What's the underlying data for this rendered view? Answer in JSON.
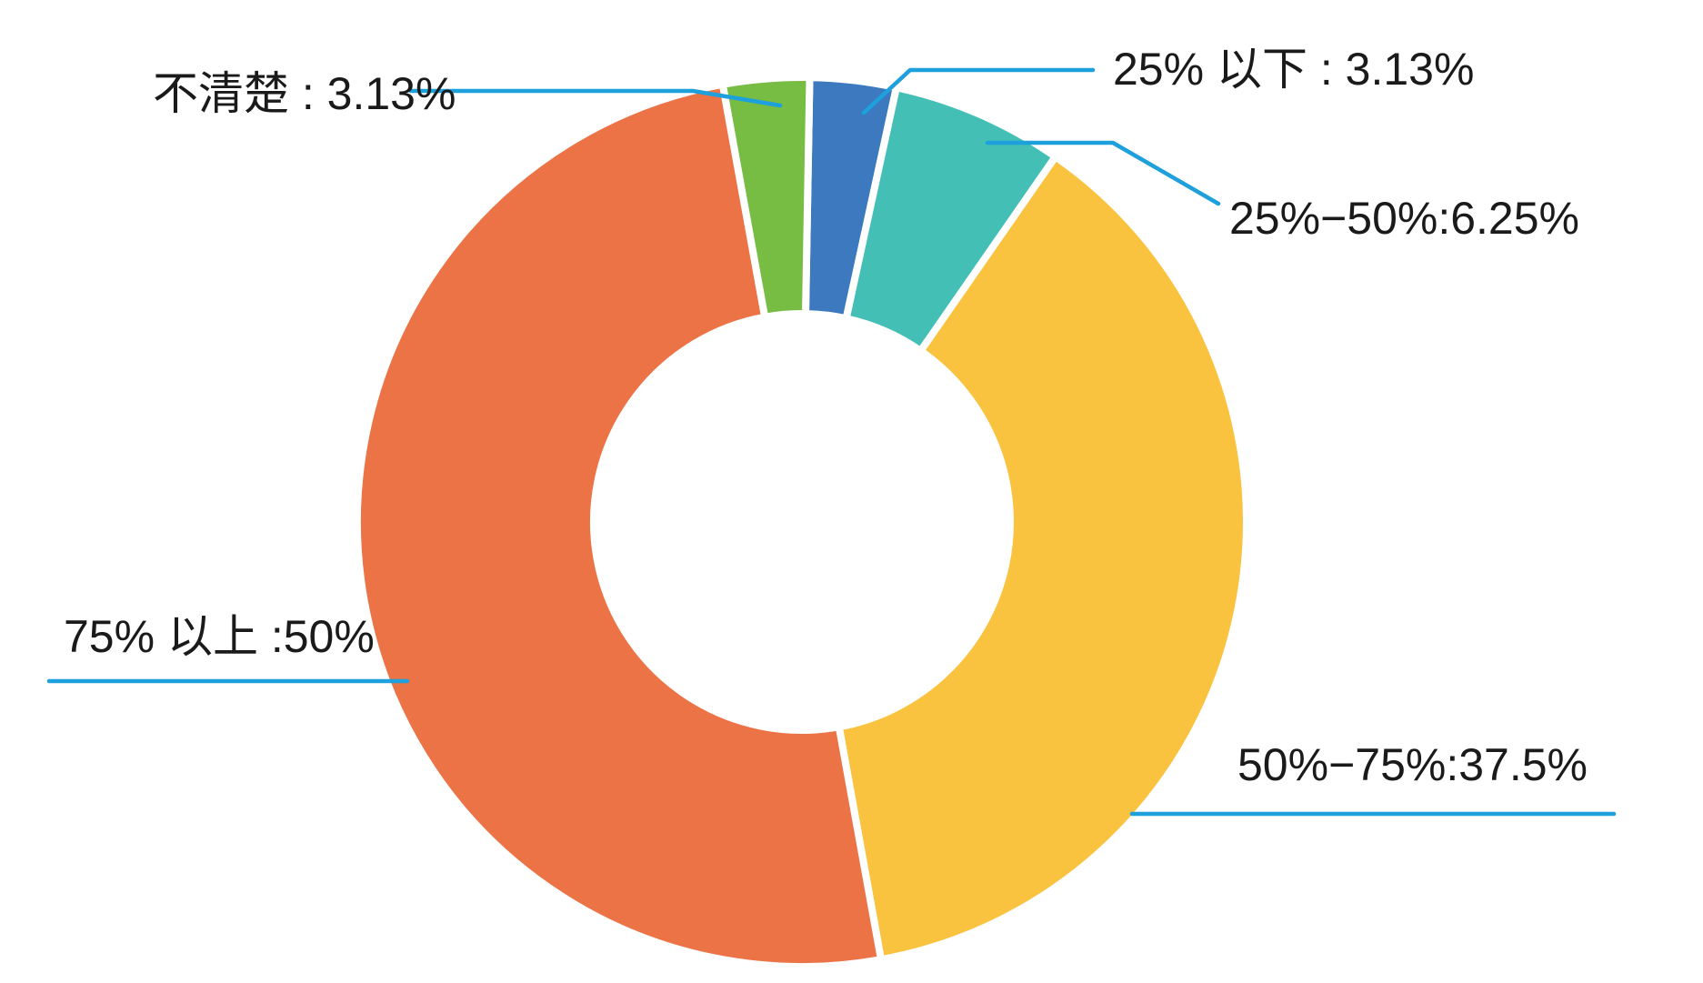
{
  "chart_data": {
    "type": "pie",
    "subtype": "donut",
    "title": "",
    "legend": "none",
    "background": "#ffffff",
    "text_color": "#1a1a1a",
    "leader_color": "#1da0dc",
    "start_angle_deg": 1,
    "clockwise": true,
    "series": [
      {
        "key": "under-25",
        "name": "25% 以下",
        "value": 3.13,
        "color": "#3c79bf",
        "label": "25% 以下 : 3.13%"
      },
      {
        "key": "25-50",
        "name": "25%−50%",
        "value": 6.25,
        "color": "#43bfb6",
        "label": "25%−50%:6.25%"
      },
      {
        "key": "50-75",
        "name": "50%−75%",
        "value": 37.5,
        "color": "#fac33f",
        "label": "50%−75%:37.5%"
      },
      {
        "key": "over-75",
        "name": "75% 以上",
        "value": 50,
        "color": "#ec7346",
        "label": "75% 以上 :50%"
      },
      {
        "key": "unclear",
        "name": "不清楚",
        "value": 3.13,
        "color": "#77bc43",
        "label": "不清楚 : 3.13%"
      }
    ]
  }
}
